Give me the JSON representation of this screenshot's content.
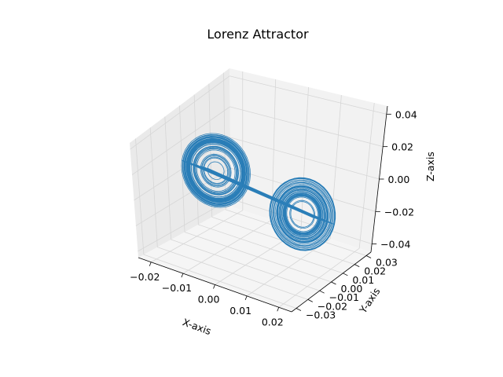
{
  "chart_data": {
    "type": "line",
    "projection": "3d",
    "title": "Lorenz Attractor",
    "xlabel": "X-axis",
    "ylabel": "Y-axis",
    "zlabel": "Z-axis",
    "xlim": [
      -0.024,
      0.024
    ],
    "ylim": [
      -0.034,
      0.034
    ],
    "zlim": [
      -0.045,
      0.045
    ],
    "xticks": [
      "−0.02",
      "−0.01",
      "0.00",
      "0.01",
      "0.02"
    ],
    "xtick_values": [
      -0.02,
      -0.01,
      0.0,
      0.01,
      0.02
    ],
    "yticks": [
      "−0.03",
      "−0.02",
      "−0.01",
      "0.00",
      "0.01",
      "0.02",
      "0.03"
    ],
    "ytick_values": [
      -0.03,
      -0.02,
      -0.01,
      0.0,
      0.01,
      0.02,
      0.03
    ],
    "zticks": [
      "−0.04",
      "−0.02",
      "0.00",
      "0.02",
      "0.04"
    ],
    "ztick_values": [
      -0.04,
      -0.02,
      0.0,
      0.02,
      0.04
    ],
    "grid": true,
    "series": [
      {
        "color": "#1f77b4",
        "line_width": 0.8,
        "lobes": [
          {
            "center_x": -0.0135,
            "center_y": 0.0,
            "center_z": 0.006,
            "inner_radius": 0.0025,
            "outer_radius": 0.0105
          },
          {
            "center_x": 0.0135,
            "center_y": 0.0,
            "center_z": -0.006,
            "inner_radius": 0.0025,
            "outer_radius": 0.0105
          }
        ],
        "loops_per_lobe": 45
      }
    ]
  },
  "colors": {
    "pane_left": "#eaeaea",
    "pane_back": "#f2f2f2",
    "pane_floor": "#f5f5f5",
    "grid": "#d6d6d6",
    "axis": "#000000"
  }
}
